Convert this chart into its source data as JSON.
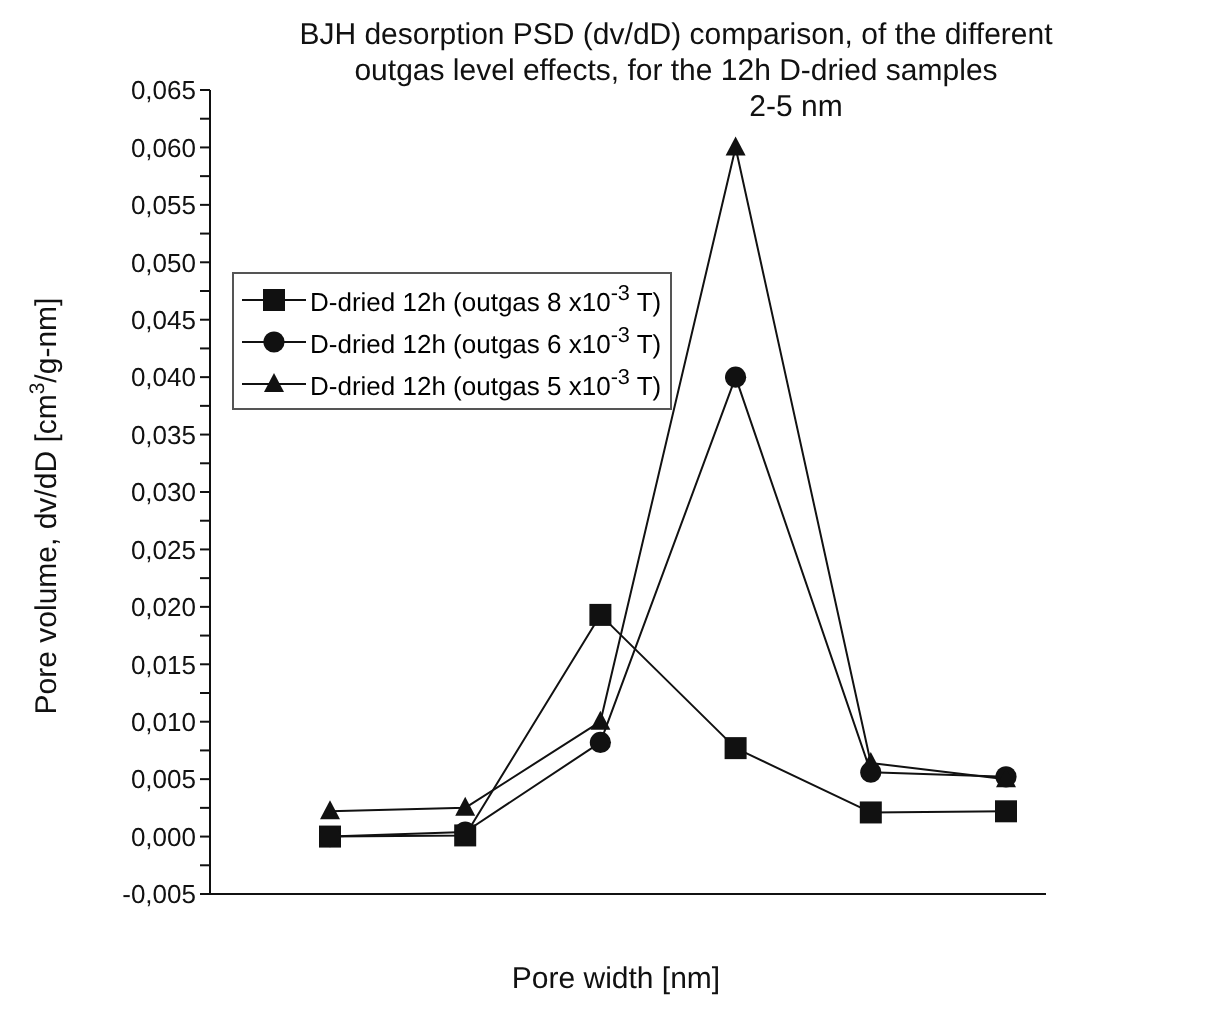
{
  "chart_data": {
    "type": "line",
    "title": "BJH desorption PSD (dv/dD) comparison, of the different\noutgas level effects, for the 12h D-dried samples",
    "xlabel": "Pore width [nm]",
    "ylabel": "Pore volume, dv/dD [cm$^{3}$/g-nm]",
    "annotations": [
      "2-5 nm"
    ],
    "categories": [
      null,
      null,
      null,
      null,
      null,
      null
    ],
    "series": [
      {
        "name": "D-dried 12h (outgas 8 x10$^{-3}$ T)",
        "color": "#111111",
        "marker": "square",
        "values": [
          0.0,
          0.0001,
          0.0193,
          0.0077,
          0.0021,
          0.0022
        ]
      },
      {
        "name": "D-dried 12h (outgas 6 x10$^{-3}$ T)",
        "color": "#111111",
        "marker": "circle",
        "values": [
          0.0,
          0.0004,
          0.0082,
          0.04,
          0.0056,
          0.0052
        ]
      },
      {
        "name": "D-dried 12h (outgas 5 x10$^{-3}$ T)",
        "color": "#111111",
        "marker": "triangle",
        "values": [
          0.0022,
          0.0025,
          0.01,
          0.06,
          0.0064,
          0.005
        ]
      }
    ],
    "ylim": [
      -0.005,
      0.065
    ],
    "yticks": [
      {
        "value": -0.005,
        "label": "-0,005"
      },
      {
        "value": -0.0025,
        "label": null
      },
      {
        "value": 0,
        "label": "0,000"
      },
      {
        "value": 0.0025,
        "label": null
      },
      {
        "value": 0.005,
        "label": "0,005"
      },
      {
        "value": 0.0075,
        "label": null
      },
      {
        "value": 0.01,
        "label": "0,010"
      },
      {
        "value": 0.0125,
        "label": null
      },
      {
        "value": 0.015,
        "label": "0,015"
      },
      {
        "value": 0.0175,
        "label": null
      },
      {
        "value": 0.02,
        "label": "0,020"
      },
      {
        "value": 0.0225,
        "label": null
      },
      {
        "value": 0.025,
        "label": "0,025"
      },
      {
        "value": 0.0275,
        "label": null
      },
      {
        "value": 0.03,
        "label": "0,030"
      },
      {
        "value": 0.0325,
        "label": null
      },
      {
        "value": 0.035,
        "label": "0,035"
      },
      {
        "value": 0.0375,
        "label": null
      },
      {
        "value": 0.04,
        "label": "0,040"
      },
      {
        "value": 0.0425,
        "label": null
      },
      {
        "value": 0.045,
        "label": "0,045"
      },
      {
        "value": 0.0475,
        "label": null
      },
      {
        "value": 0.05,
        "label": "0,050"
      },
      {
        "value": 0.0525,
        "label": null
      },
      {
        "value": 0.055,
        "label": "0,055"
      },
      {
        "value": 0.0575,
        "label": null
      },
      {
        "value": 0.06,
        "label": "0,060"
      },
      {
        "value": 0.0625,
        "label": null
      },
      {
        "value": 0.065,
        "label": "0,065"
      }
    ],
    "grid": false,
    "legend": "top left",
    "tick_labels": "y",
    "line_style": "solid"
  }
}
